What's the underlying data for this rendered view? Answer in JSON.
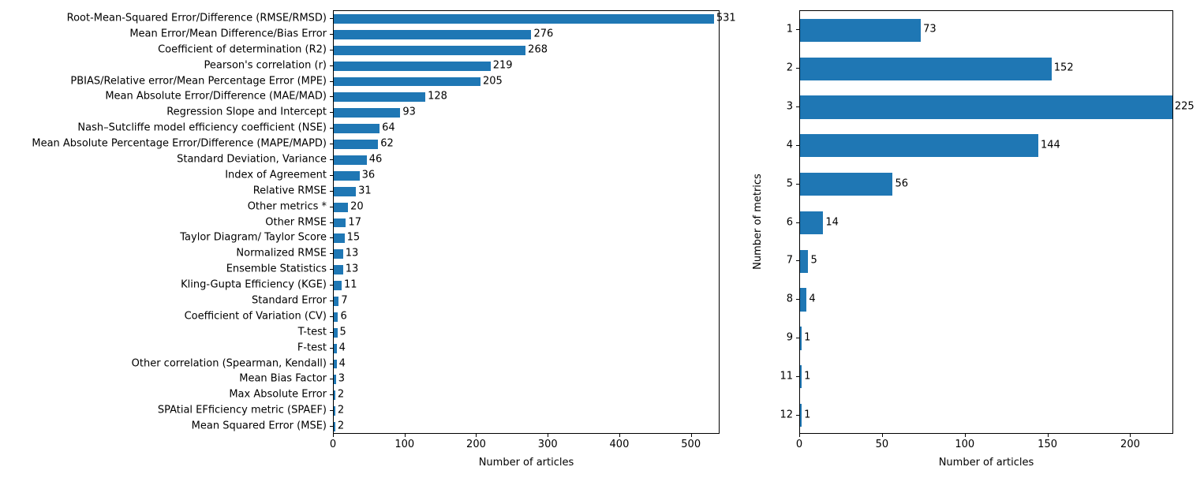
{
  "chart_data": [
    {
      "type": "bar",
      "orientation": "horizontal",
      "title": "",
      "xlabel": "Number of articles",
      "ylabel": "",
      "xlim": [
        0,
        540
      ],
      "xticks": [
        0,
        100,
        200,
        300,
        400,
        500
      ],
      "grid": false,
      "legend": "none",
      "bar_color": "#1f77b4",
      "categories": [
        "Root-Mean-Squared Error/Difference (RMSE/RMSD)",
        "Mean Error/Mean Difference/Bias Error",
        "Coefficient of determination (R2)",
        "Pearson's correlation (r)",
        "PBIAS/Relative error/Mean Percentage Error (MPE)",
        "Mean Absolute Error/Difference (MAE/MAD)",
        "Regression Slope and Intercept",
        "Nash–Sutcliffe model efficiency coefficient (NSE)",
        "Mean Absolute Percentage Error/Difference (MAPE/MAPD)",
        "Standard Deviation, Variance",
        "Index of Agreement",
        "Relative RMSE",
        "Other metrics *",
        "Other RMSE",
        "Taylor Diagram/ Taylor Score",
        "Normalized RMSE",
        "Ensemble Statistics",
        "Kling-Gupta Efficiency (KGE)",
        "Standard Error",
        "Coefficient of Variation (CV)",
        "T-test",
        "F-test",
        "Other correlation (Spearman, Kendall)",
        "Mean Bias Factor",
        "Max Absolute Error",
        "SPAtial EFficiency metric (SPAEF)",
        "Mean Squared Error (MSE)"
      ],
      "values": [
        531,
        276,
        268,
        219,
        205,
        128,
        93,
        64,
        62,
        46,
        36,
        31,
        20,
        17,
        15,
        13,
        13,
        11,
        7,
        6,
        5,
        4,
        4,
        3,
        2,
        2,
        2
      ]
    },
    {
      "type": "bar",
      "orientation": "horizontal",
      "title": "",
      "xlabel": "Number of articles",
      "ylabel": "Number of metrics",
      "xlim": [
        0,
        226
      ],
      "xticks": [
        0,
        50,
        100,
        150,
        200
      ],
      "grid": false,
      "legend": "none",
      "bar_color": "#1f77b4",
      "categories": [
        "1",
        "2",
        "3",
        "4",
        "5",
        "6",
        "7",
        "8",
        "9",
        "11",
        "12"
      ],
      "values": [
        73,
        152,
        225,
        144,
        56,
        14,
        5,
        4,
        1,
        1,
        1
      ]
    }
  ]
}
